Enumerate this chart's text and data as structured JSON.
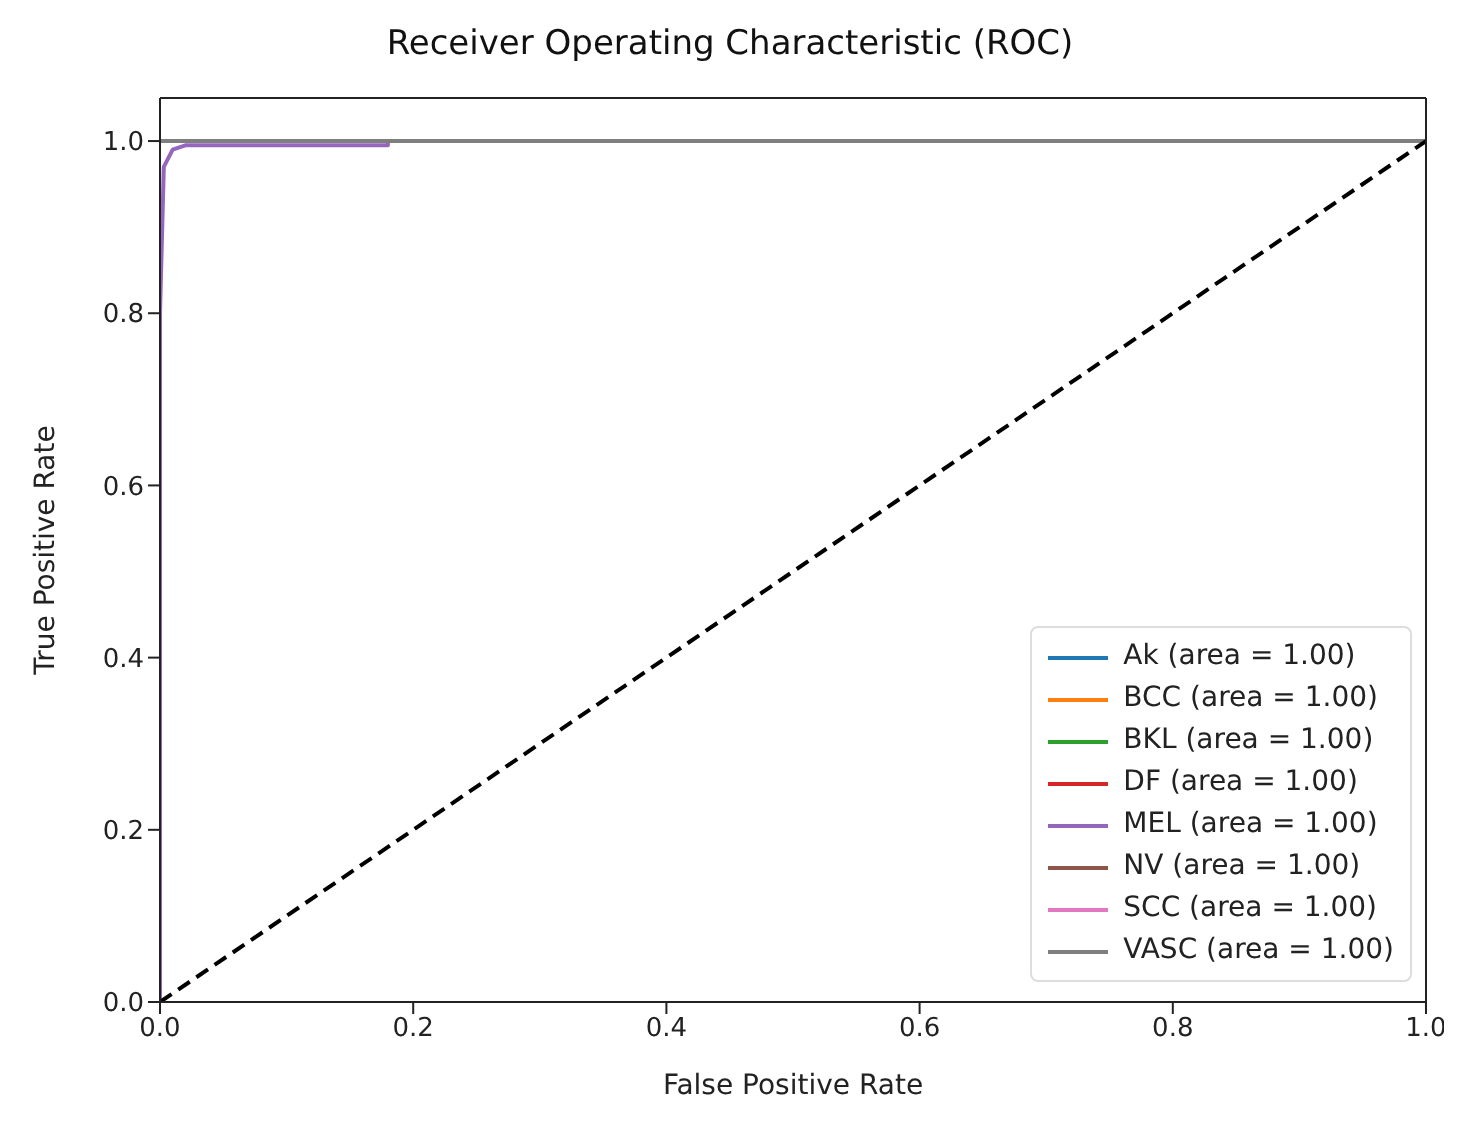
{
  "chart_data": {
    "type": "line",
    "title": "Receiver Operating Characteristic (ROC)",
    "xlabel": "False Positive Rate",
    "ylabel": "True Positive Rate",
    "xlim": [
      0,
      1
    ],
    "ylim": [
      0,
      1.05
    ],
    "xticks": [
      {
        "value": 0,
        "label": "0.0"
      },
      0.2,
      0.4,
      0.6,
      0.8,
      {
        "value": 1,
        "label": "1.0"
      }
    ],
    "yticks": [
      {
        "value": 0,
        "label": "0.0"
      },
      0.2,
      0.4,
      0.6,
      0.8,
      {
        "value": 1,
        "label": "1.0"
      }
    ],
    "legend": "bottom right",
    "marker": "none",
    "series": [
      {
        "name": "Ak (area = 1.00)",
        "color": "#1f77b4",
        "values": [
          null
        ]
      },
      {
        "name": "BCC (area = 1.00)",
        "color": "#ff7f0e",
        "values": [
          null
        ]
      },
      {
        "name": "BKL (area = 1.00)",
        "color": "#2ca02c",
        "values": [
          null
        ]
      },
      {
        "name": "DF (area = 1.00)",
        "color": "#d62728",
        "values": [
          null
        ]
      },
      {
        "name": "MEL (area = 1.00)",
        "color": "#9467bd",
        "x": [
          0,
          0,
          0.003,
          0.01,
          0.02,
          0.18,
          0.18,
          1
        ],
        "values": [
          0,
          0.8,
          0.97,
          0.99,
          0.995,
          0.995,
          1,
          1
        ]
      },
      {
        "name": "NV (area = 1.00)",
        "color": "#8c564b",
        "values": [
          null
        ]
      },
      {
        "name": "SCC (area = 1.00)",
        "color": "#e377c2",
        "values": [
          null
        ]
      },
      {
        "name": "VASC (area = 1.00)",
        "color": "#7f7f7f",
        "x": [
          0,
          1
        ],
        "values": [
          1,
          1
        ]
      },
      {
        "color": "#000000",
        "x": [
          0,
          1
        ],
        "values": [
          0,
          1
        ],
        "line_style": "dashed"
      }
    ]
  }
}
